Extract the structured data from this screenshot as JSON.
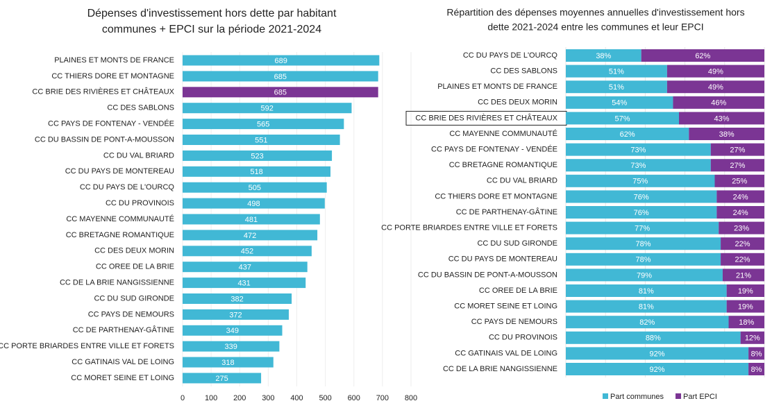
{
  "chart_data": [
    {
      "type": "hbar",
      "title": [
        "Dépenses d'investissement hors dette par habitant",
        "communes + EPCI sur la période 2021-2024"
      ],
      "categories": [
        "PLAINES ET MONTS DE FRANCE",
        "CC THIERS DORE ET MONTAGNE",
        "CC BRIE DES RIVIÈRES ET CHÂTEAUX",
        "CC DES SABLONS",
        "CC PAYS DE FONTENAY - VENDÉE",
        "CC DU BASSIN DE PONT-A-MOUSSON",
        "CC DU VAL BRIARD",
        "CC DU PAYS DE MONTEREAU",
        "CC DU PAYS DE L'OURCQ",
        "CC DU PROVINOIS",
        "CC MAYENNE COMMUNAUTÉ",
        "CC BRETAGNE ROMANTIQUE",
        "CC DES DEUX MORIN",
        "CC OREE DE LA BRIE",
        "CC DE LA BRIE NANGISSIENNE",
        "CC DU SUD GIRONDE",
        "CC PAYS DE NEMOURS",
        "CC DE PARTHENAY-GÂTINE",
        "CC PORTE BRIARDES ENTRE VILLE ET FORETS",
        "CC GATINAIS VAL DE LOING",
        "CC MORET SEINE ET LOING"
      ],
      "values": [
        689,
        685,
        685,
        592,
        565,
        551,
        523,
        518,
        505,
        498,
        481,
        472,
        452,
        437,
        431,
        382,
        372,
        349,
        339,
        318,
        275
      ],
      "colors": [
        "#41b8d5",
        "#41b8d5",
        "#7b3594",
        "#41b8d5",
        "#41b8d5",
        "#41b8d5",
        "#41b8d5",
        "#41b8d5",
        "#41b8d5",
        "#41b8d5",
        "#41b8d5",
        "#41b8d5",
        "#41b8d5",
        "#41b8d5",
        "#41b8d5",
        "#41b8d5",
        "#41b8d5",
        "#41b8d5",
        "#41b8d5",
        "#41b8d5",
        "#41b8d5"
      ],
      "xlim": [
        0,
        800
      ],
      "xticks": [
        0,
        100,
        200,
        300,
        400,
        500,
        600,
        700,
        800
      ],
      "grid": true
    },
    {
      "type": "stacked_hbar",
      "title": [
        "Répartition des dépenses moyennes annuelles d'investissement hors",
        "dette 2021-2024 entre les communes et leur EPCI"
      ],
      "categories": [
        "CC DU PAYS DE L'OURCQ",
        "CC DES SABLONS",
        "PLAINES ET MONTS DE FRANCE",
        "CC DES DEUX MORIN",
        "CC BRIE DES RIVIÈRES ET CHÂTEAUX",
        "CC MAYENNE COMMUNAUTÉ",
        "CC PAYS DE FONTENAY - VENDÉE",
        "CC BRETAGNE ROMANTIQUE",
        "CC DU VAL BRIARD",
        "CC THIERS DORE ET MONTAGNE",
        "CC DE PARTHENAY-GÂTINE",
        "CC PORTE BRIARDES ENTRE VILLE ET FORETS",
        "CC DU SUD GIRONDE",
        "CC DU PAYS DE MONTEREAU",
        "CC DU BASSIN DE PONT-A-MOUSSON",
        "CC OREE DE LA BRIE",
        "CC MORET SEINE ET LOING",
        "CC PAYS DE NEMOURS",
        "CC DU PROVINOIS",
        "CC GATINAIS VAL DE LOING",
        "CC DE LA BRIE NANGISSIENNE"
      ],
      "series": [
        {
          "name": "Part communes",
          "color": "#41b8d5",
          "values": [
            38,
            51,
            51,
            54,
            57,
            62,
            73,
            73,
            75,
            76,
            76,
            77,
            78,
            78,
            79,
            81,
            81,
            82,
            88,
            92,
            92
          ],
          "value_labels": [
            "38%",
            "51%",
            "51%",
            "54%",
            "57%",
            "62%",
            "73%",
            "73%",
            "75%",
            "76%",
            "76%",
            "77%",
            "78%",
            "78%",
            "79%",
            "81%",
            "81%",
            "82%",
            "88%",
            "92%",
            "92%"
          ]
        },
        {
          "name": "Part EPCI",
          "color": "#7b3594",
          "values": [
            62,
            49,
            49,
            46,
            43,
            38,
            27,
            27,
            25,
            24,
            24,
            23,
            22,
            22,
            21,
            19,
            19,
            18,
            12,
            8,
            8
          ],
          "value_labels": [
            "62%",
            "49%",
            "49%",
            "46%",
            "43%",
            "38%",
            "27%",
            "27%",
            "25%",
            "24%",
            "24%",
            "23%",
            "22%",
            "22%",
            "21%",
            "19%",
            "19%",
            "18%",
            "12%",
            "8%",
            "8%"
          ]
        }
      ],
      "xlim": [
        0,
        100
      ],
      "xticks": [
        0,
        20,
        40,
        60,
        80,
        100
      ],
      "grid": true,
      "boxed_index": 4,
      "legend": "bottom"
    }
  ]
}
